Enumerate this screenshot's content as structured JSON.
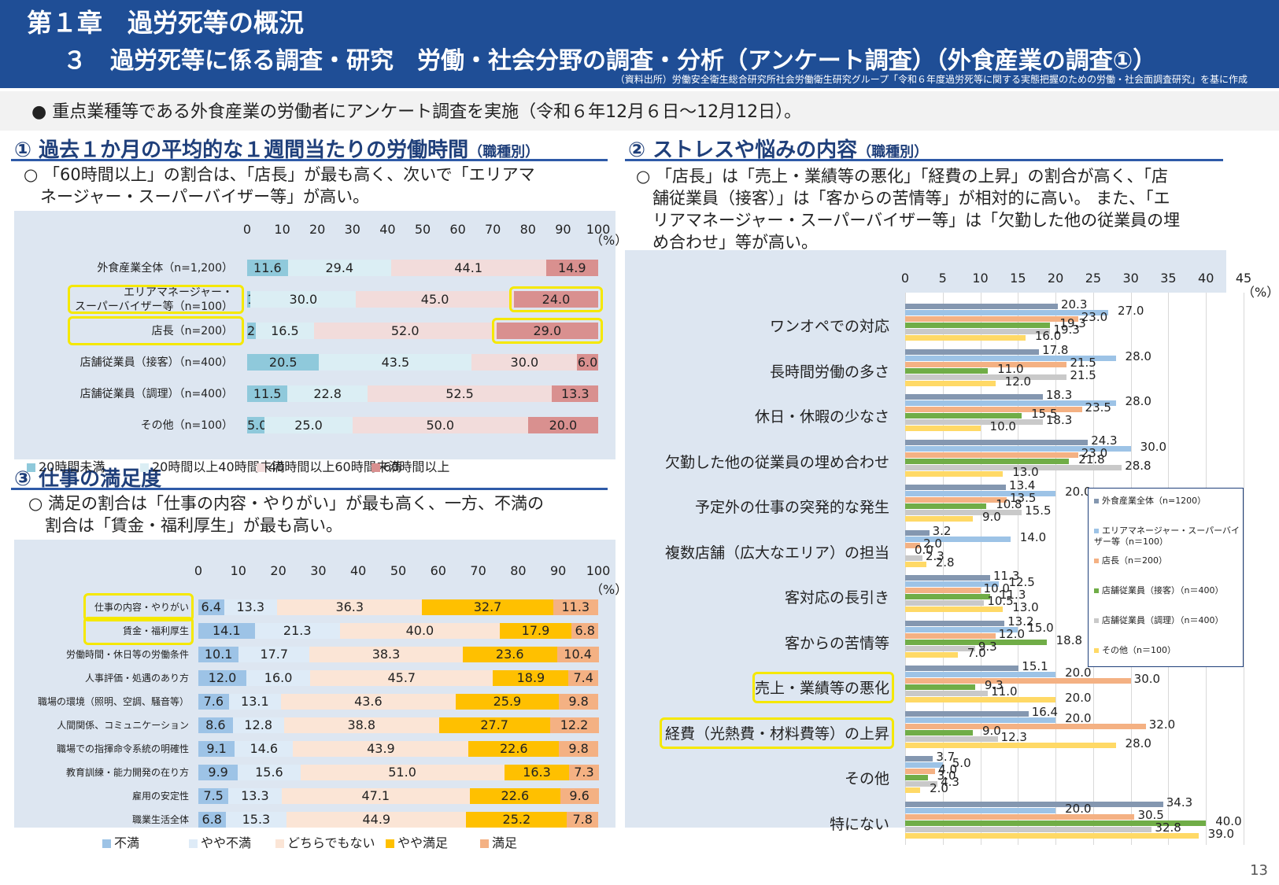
{
  "header": {
    "chapter": "第１章　過労死等の概況",
    "title": "３　過労死等に係る調査・研究　労働・社会分野の調査・分析（アンケート調査）（外食産業の調査①）",
    "source": "（資料出所）労働安全衛生総合研究所社会労働衛生研究グループ「令和６年度過労死等に関する実態把握のための労働・社会面調査研究」を基に作成"
  },
  "bullet": "●  重点業種等である外食産業の労働者にアンケート調査を実施（令和６年12月６日～12月12日）。",
  "s1": {
    "title": "① 過去１か月の平均的な１週間当たりの労働時間",
    "sub": "（職種別）",
    "note1": "○ 「60時間以上」の割合は、「店長」が最も高く、次いで「エリアマ",
    "note2": "　ネージャー・スーパーバイザー等」が高い。"
  },
  "s2": {
    "title": "② ストレスや悩みの内容",
    "sub": "（職種別）",
    "note1": "○ 「店長」は「売上・業績等の悪化」「経費の上昇」の割合が高く、「店",
    "note2": "　舗従業員（接客）」は「客からの苦情等」が相対的に高い。 また、「エ",
    "note3": "　リアマネージャー・スーパーバイザー等」は「欠勤した他の従業員の埋",
    "note4": "　め合わせ」等が高い。"
  },
  "s3": {
    "title": "③ 仕事の満足度",
    "note1": "○ 満足の割合は「仕事の内容・やりがい」が最も高く、一方、不満の",
    "note2": "　割合は「賃金・福利厚生」が最も高い。"
  },
  "page_number": "13",
  "chart_data": [
    {
      "type": "bar",
      "orientation": "horizontal",
      "stacked": true,
      "ylabel": "（%）",
      "ticks": [
        "0",
        "10",
        "20",
        "30",
        "40",
        "50",
        "60",
        "70",
        "80",
        "90",
        "100"
      ],
      "xlim": [
        0,
        100
      ],
      "categories": [
        "外食産業全体（n=1,200）",
        "エリアマネージャー・スーパーバイザー等（n=100）",
        "店長（n=200）",
        "店舗従業員（接客）（n=400）",
        "店舗従業員（調理）（n=400）",
        "その他（n=100）"
      ],
      "category_lines": [
        [
          "外食産業全体（n=1,200）"
        ],
        [
          "エリアマネージャー・",
          "スーパーバイザー等（n=100）"
        ],
        [
          "店長（n=200）"
        ],
        [
          "店舗従業員（接客）（n=400）"
        ],
        [
          "店舗従業員（調理）（n=400）"
        ],
        [
          "その他（n=100）"
        ]
      ],
      "series": [
        {
          "name": "20時間未満",
          "color": "#8fc9db",
          "values": [
            11.6,
            1.0,
            2.5,
            20.5,
            11.5,
            5.0
          ]
        },
        {
          "name": "20時間以上40時間未満",
          "color": "#dbeef4",
          "values": [
            29.4,
            30.0,
            16.5,
            43.5,
            22.8,
            25.0
          ]
        },
        {
          "name": "40時間以上60時間未満",
          "color": "#f2dcdb",
          "values": [
            44.1,
            45.0,
            52.0,
            30.0,
            52.5,
            50.0
          ]
        },
        {
          "name": "60時間以上",
          "color": "#d9908f",
          "values": [
            14.9,
            24.0,
            29.0,
            6.0,
            13.3,
            20.0
          ]
        }
      ],
      "highlight_categories": [
        1,
        2
      ],
      "highlight_cells": [
        [
          1,
          3
        ],
        [
          2,
          3
        ]
      ]
    },
    {
      "type": "bar",
      "orientation": "horizontal",
      "stacked": false,
      "ylabel": "（%）",
      "ticks": [
        "0",
        "5",
        "10",
        "15",
        "20",
        "25",
        "30",
        "35",
        "40",
        "45"
      ],
      "xlim": [
        0,
        45
      ],
      "categories": [
        "ワンオペでの対応",
        "長時間労働の多さ",
        "休日・休暇の少なさ",
        "欠勤した他の従業員の埋め合わせ",
        "予定外の仕事の突発的な発生",
        "複数店舗（広大なエリア）の担当",
        "客対応の長引き",
        "客からの苦情等",
        "売上・業績等の悪化",
        "経費（光熱費・材料費等）の上昇",
        "その他",
        "特にない"
      ],
      "series": [
        {
          "name": "外食産業全体（n=1200）",
          "color": "#8497b0",
          "values": [
            20.3,
            17.8,
            18.3,
            24.3,
            13.4,
            3.2,
            11.3,
            13.2,
            15.1,
            16.4,
            3.7,
            34.3
          ]
        },
        {
          "name": "エリアマネージャー・スーパーバイザー等（n＝100）",
          "color": "#9dc3e6",
          "values": [
            27.0,
            28.0,
            28.0,
            30.0,
            20.0,
            14.0,
            12.5,
            15.0,
            20.0,
            20.0,
            5.0,
            20.0
          ]
        },
        {
          "name": "店長（n＝200）",
          "color": "#f4b183",
          "values": [
            23.0,
            21.5,
            23.5,
            23.0,
            13.5,
            2.0,
            10.0,
            12.0,
            30.0,
            32.0,
            4.0,
            30.5
          ]
        },
        {
          "name": "店舗従業員（接客）（n＝400）",
          "color": "#70ad47",
          "values": [
            19.3,
            11.0,
            15.5,
            21.8,
            10.8,
            0.0,
            11.3,
            18.8,
            9.3,
            9.0,
            3.0,
            40.0
          ]
        },
        {
          "name": "店舗従業員（調理）（n＝400）",
          "color": "#c9c9c9",
          "values": [
            19.3,
            21.5,
            18.3,
            28.8,
            15.5,
            2.3,
            10.5,
            9.3,
            11.0,
            12.3,
            4.3,
            32.8
          ]
        },
        {
          "name": "その他（n＝100）",
          "color": "#ffd966",
          "values": [
            16.0,
            12.0,
            10.0,
            13.0,
            9.0,
            2.8,
            13.0,
            7.0,
            20.0,
            28.0,
            2.0,
            39.0
          ]
        }
      ],
      "highlight_categories": [
        8,
        9
      ]
    },
    {
      "type": "bar",
      "orientation": "horizontal",
      "stacked": true,
      "ylabel": "（%）",
      "ticks": [
        "0",
        "10",
        "20",
        "30",
        "40",
        "50",
        "60",
        "70",
        "80",
        "90",
        "100"
      ],
      "xlim": [
        0,
        100
      ],
      "categories": [
        "仕事の内容・やりがい",
        "賃金・福利厚生",
        "労働時間・休日等の労働条件",
        "人事評価・処遇のあり方",
        "職場の環境（照明、空調、騒音等）",
        "人間関係、コミュニケーション",
        "職場での指揮命令系統の明確性",
        "教育訓練・能力開発の在り方",
        "雇用の安定性",
        "職業生活全体"
      ],
      "series": [
        {
          "name": "不満",
          "color": "#9dc3e6",
          "values": [
            6.4,
            14.1,
            10.1,
            12.0,
            7.6,
            8.6,
            9.1,
            9.9,
            7.5,
            6.8
          ]
        },
        {
          "name": "やや不満",
          "color": "#deebf7",
          "values": [
            13.3,
            21.3,
            17.7,
            16.0,
            13.1,
            12.8,
            14.6,
            15.6,
            13.3,
            15.3
          ]
        },
        {
          "name": "どちらでもない",
          "color": "#fbe5d6",
          "values": [
            36.3,
            40.0,
            38.3,
            45.7,
            43.6,
            38.8,
            43.9,
            51.0,
            47.1,
            44.9
          ]
        },
        {
          "name": "やや満足",
          "color": "#ffc000",
          "values": [
            32.7,
            17.9,
            23.6,
            18.9,
            25.9,
            27.7,
            22.6,
            16.3,
            22.6,
            25.2
          ]
        },
        {
          "name": "満足",
          "color": "#f4b183",
          "values": [
            11.3,
            6.8,
            10.4,
            7.4,
            9.8,
            12.2,
            9.8,
            7.3,
            9.6,
            7.8
          ]
        }
      ],
      "highlight_categories": [
        0,
        1
      ]
    }
  ]
}
